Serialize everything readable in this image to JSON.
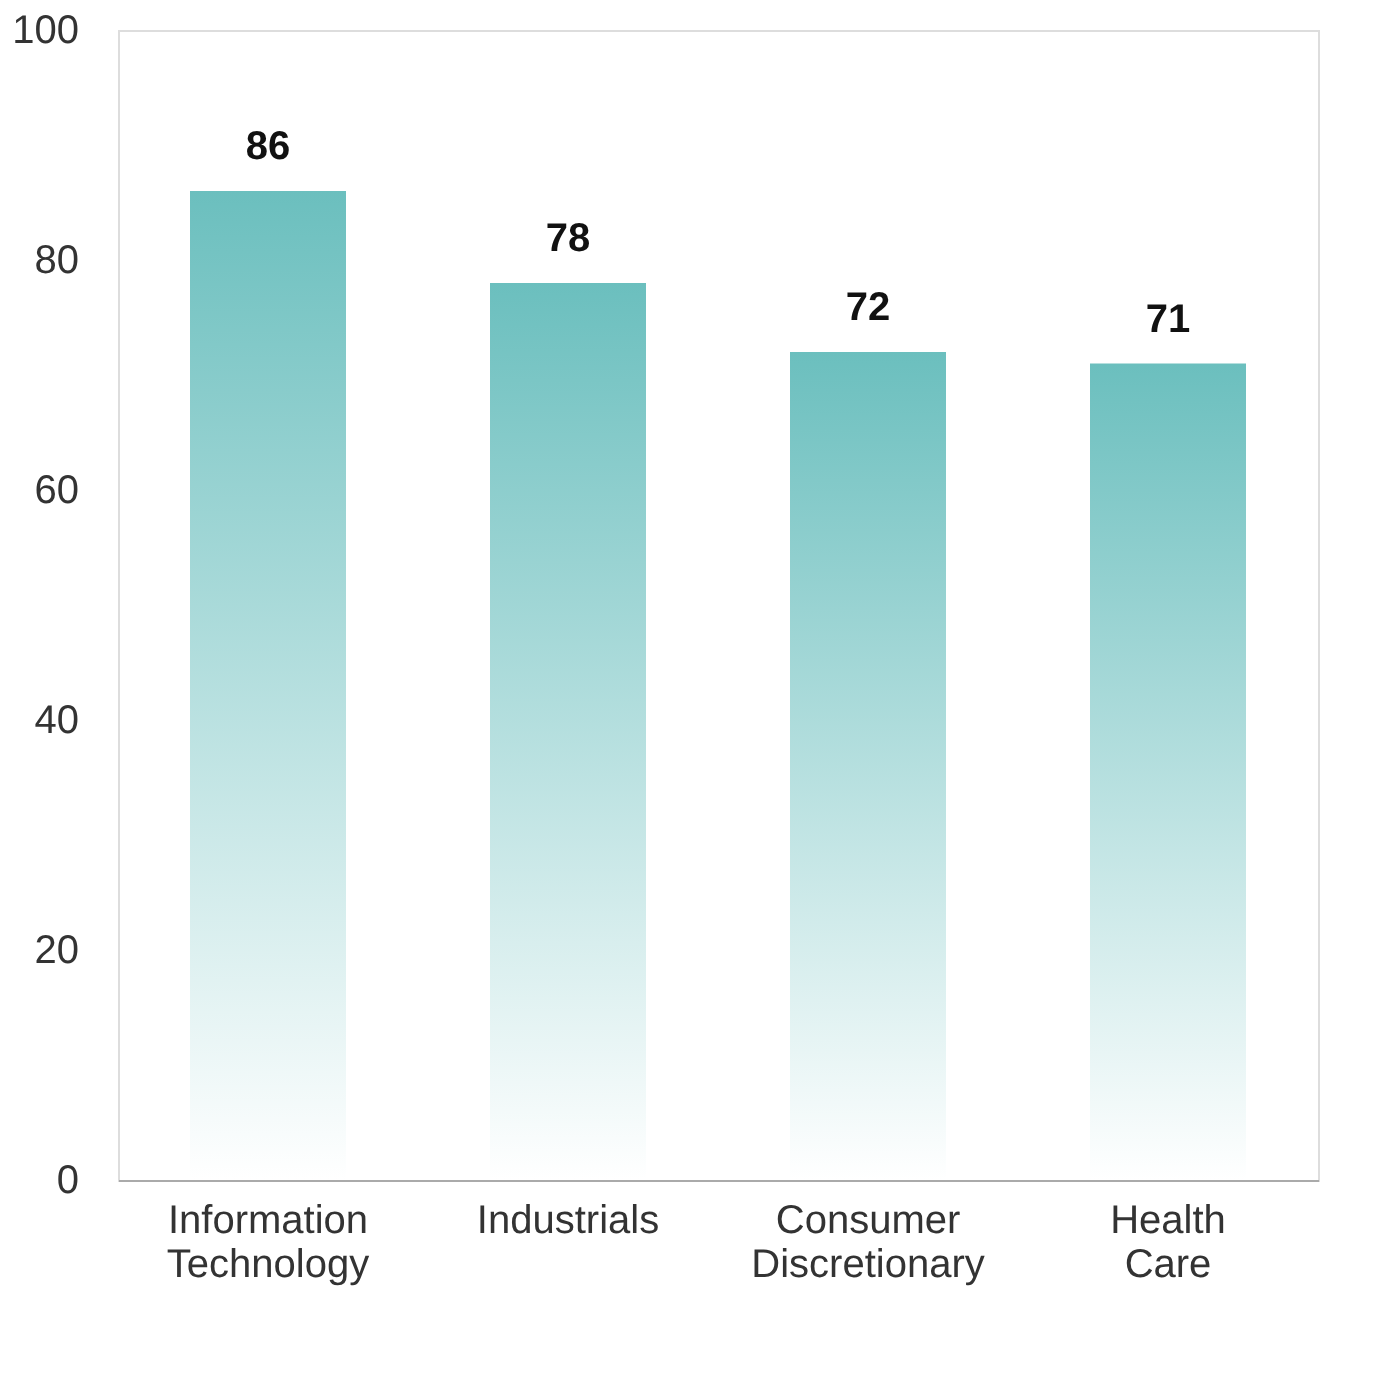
{
  "chart_data": {
    "type": "bar",
    "categories": [
      "Information Technology",
      "Industrials",
      "Consumer Discretionary",
      "Health Care"
    ],
    "values": [
      86,
      78,
      72,
      71
    ],
    "color": "#6bbfbe",
    "ylim": [
      0,
      100
    ],
    "yticks": [
      0,
      20,
      40,
      60,
      80,
      100
    ],
    "grid": false,
    "data_labels": true
  }
}
